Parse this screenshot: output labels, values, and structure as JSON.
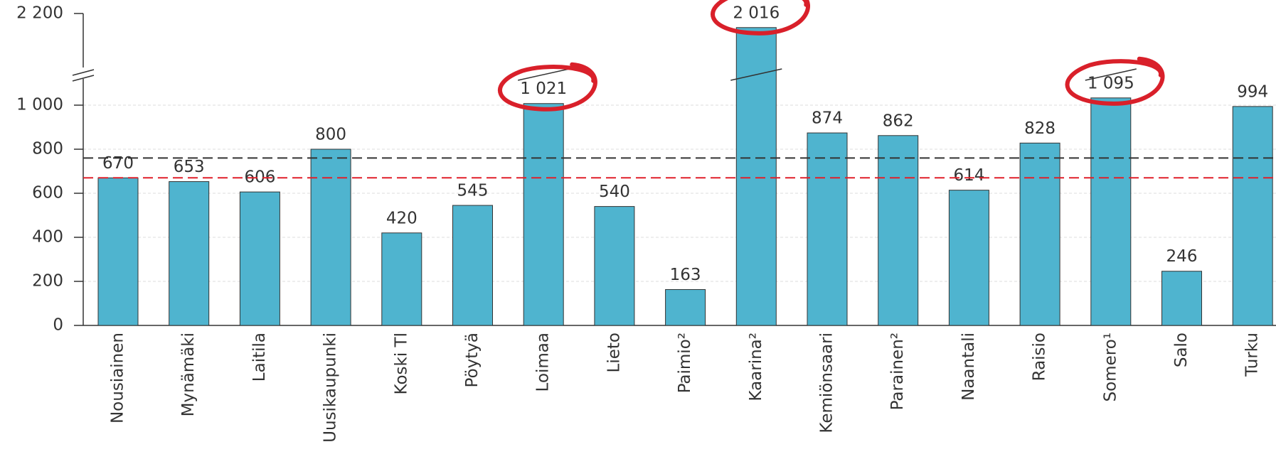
{
  "chart_data": {
    "type": "bar",
    "categories": [
      "Nousiainen",
      "Mynämäki",
      "Laitila",
      "Uusikaupunki",
      "Koski Tl",
      "Pöytyä",
      "Loimaa",
      "Lieto",
      "Paimio²",
      "Kaarina²",
      "Kemiönsaari",
      "Parainen²",
      "Naantali",
      "Raisio",
      "Somero¹",
      "Salo",
      "Turku"
    ],
    "values": [
      670,
      653,
      606,
      800,
      420,
      545,
      1021,
      540,
      163,
      2016,
      874,
      862,
      614,
      828,
      1095,
      246,
      994
    ],
    "value_labels": [
      "670",
      "653",
      "606",
      "800",
      "420",
      "545",
      "1 021",
      "540",
      "163",
      "2 016",
      "874",
      "862",
      "614",
      "828",
      "1 095",
      "246",
      "994"
    ],
    "color": "#4fb4cf",
    "ylim": [
      0,
      2200
    ],
    "yticks": [
      0,
      200,
      400,
      600,
      800,
      {
        "value": 1000,
        "label": "1 000"
      },
      {
        "value": 2200,
        "label": "2 200"
      }
    ],
    "axis_break": true,
    "grid": true,
    "reference_lines": [
      {
        "value": 760,
        "color": "#333333"
      },
      {
        "value": 670,
        "color": "#e0202a"
      }
    ],
    "highlighted": [
      "Loimaa",
      "Kaarina²",
      "Somero¹"
    ],
    "highlight_color": "#d9202a"
  }
}
